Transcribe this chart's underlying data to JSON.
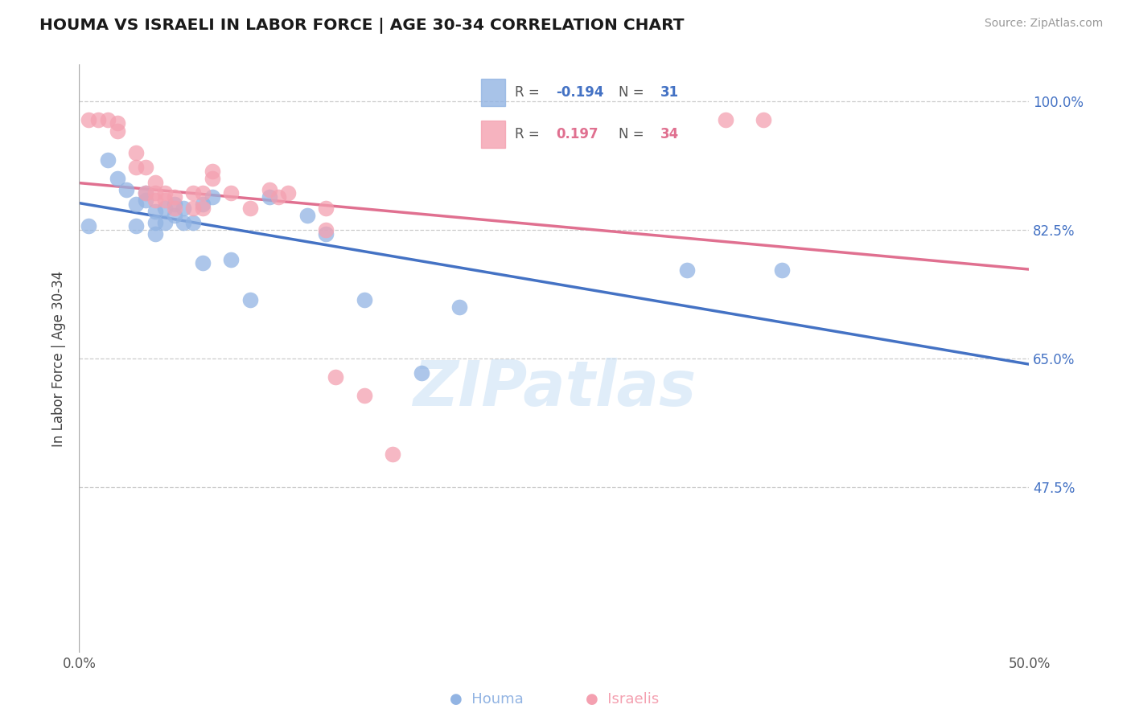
{
  "title": "HOUMA VS ISRAELI IN LABOR FORCE | AGE 30-34 CORRELATION CHART",
  "source": "Source: ZipAtlas.com",
  "ylabel": "In Labor Force | Age 30-34",
  "xlim": [
    0.0,
    0.5
  ],
  "ylim": [
    0.25,
    1.05
  ],
  "xticks": [
    0.0,
    0.1,
    0.2,
    0.3,
    0.4,
    0.5
  ],
  "xticklabels": [
    "0.0%",
    "",
    "",
    "",
    "",
    "50.0%"
  ],
  "ytick_right": [
    1.0,
    0.825,
    0.65,
    0.475
  ],
  "ytick_right_labels": [
    "100.0%",
    "82.5%",
    "65.0%",
    "47.5%"
  ],
  "houma_color": "#92b4e3",
  "israeli_color": "#f4a0b0",
  "blue_line_color": "#4472c4",
  "pink_line_color": "#e07090",
  "houma_r_str": "-0.194",
  "houma_n_str": "31",
  "israeli_r_str": "0.197",
  "israeli_n_str": "34",
  "watermark": "ZIPatlas",
  "houma_label": "Houma",
  "israeli_label": "Israelis",
  "houma_x": [
    0.005,
    0.015,
    0.02,
    0.025,
    0.03,
    0.03,
    0.035,
    0.035,
    0.04,
    0.04,
    0.04,
    0.045,
    0.045,
    0.05,
    0.05,
    0.055,
    0.055,
    0.06,
    0.065,
    0.065,
    0.07,
    0.08,
    0.09,
    0.1,
    0.12,
    0.13,
    0.15,
    0.18,
    0.2,
    0.32,
    0.37
  ],
  "houma_y": [
    0.83,
    0.92,
    0.895,
    0.88,
    0.86,
    0.83,
    0.875,
    0.865,
    0.85,
    0.835,
    0.82,
    0.855,
    0.835,
    0.86,
    0.845,
    0.855,
    0.835,
    0.835,
    0.86,
    0.78,
    0.87,
    0.785,
    0.73,
    0.87,
    0.845,
    0.82,
    0.73,
    0.63,
    0.72,
    0.77,
    0.77
  ],
  "israeli_x": [
    0.005,
    0.01,
    0.015,
    0.02,
    0.02,
    0.03,
    0.03,
    0.035,
    0.035,
    0.04,
    0.04,
    0.04,
    0.045,
    0.045,
    0.05,
    0.05,
    0.06,
    0.06,
    0.065,
    0.065,
    0.07,
    0.07,
    0.08,
    0.09,
    0.1,
    0.105,
    0.11,
    0.13,
    0.13,
    0.135,
    0.15,
    0.165,
    0.34,
    0.36
  ],
  "israeli_y": [
    0.975,
    0.975,
    0.975,
    0.97,
    0.96,
    0.93,
    0.91,
    0.91,
    0.875,
    0.89,
    0.875,
    0.865,
    0.875,
    0.865,
    0.87,
    0.855,
    0.875,
    0.855,
    0.875,
    0.855,
    0.905,
    0.895,
    0.875,
    0.855,
    0.88,
    0.87,
    0.875,
    0.855,
    0.825,
    0.625,
    0.6,
    0.52,
    0.975,
    0.975
  ]
}
